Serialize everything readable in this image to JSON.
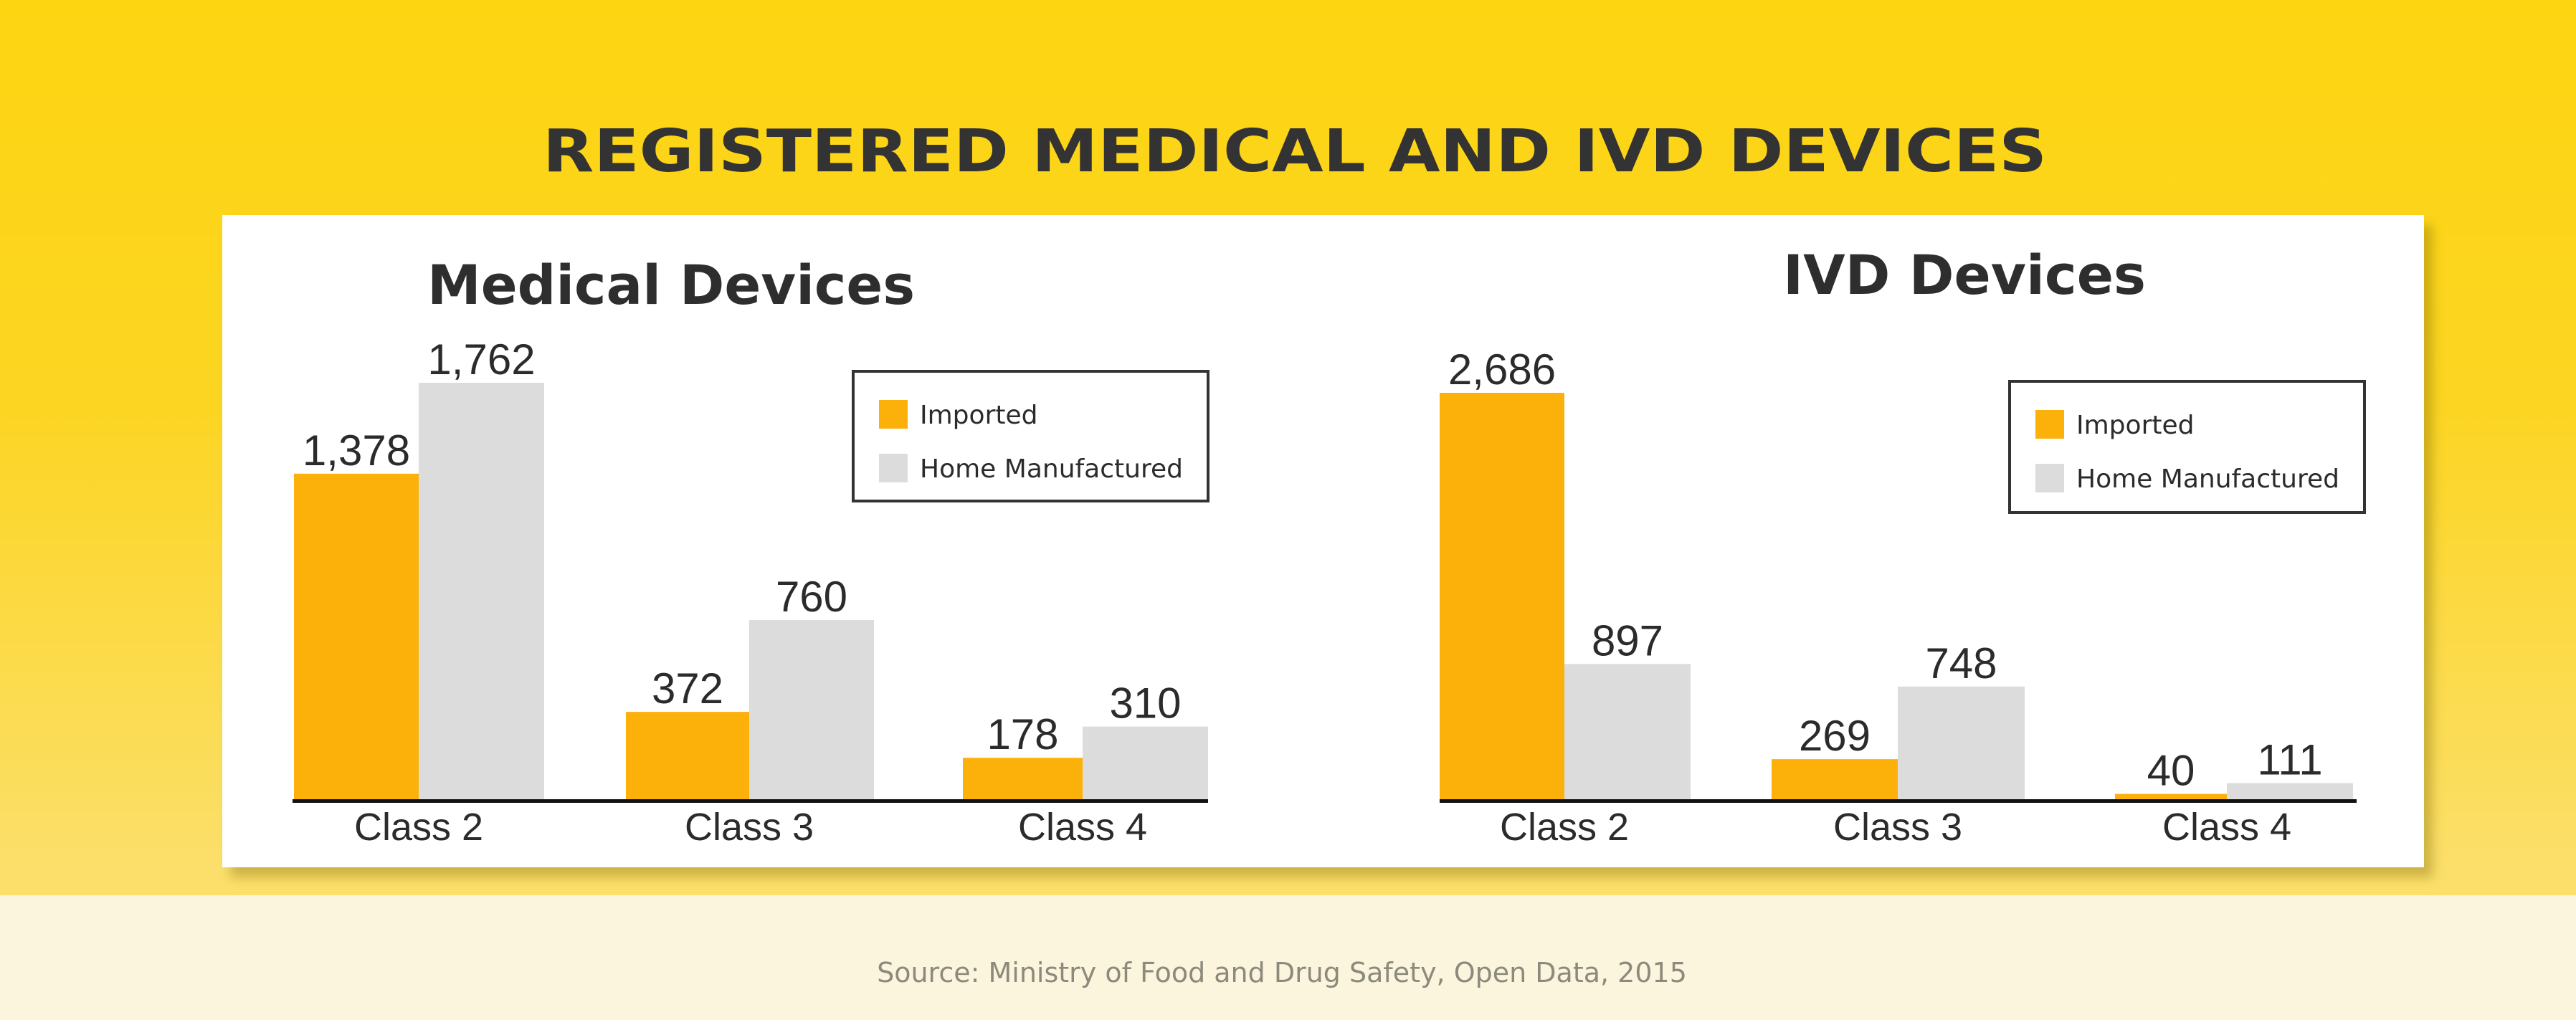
{
  "title": "REGISTERED MEDICAL AND IVD DEVICES",
  "source": "Source: Ministry of Food and Drug Safety, Open Data, 2015",
  "colors": {
    "imported": "#FBB10A",
    "home_manufactured": "#DCDCDC",
    "background": "#FDD511"
  },
  "chart_data": [
    {
      "type": "bar",
      "title": "Medical Devices",
      "categories": [
        "Class 2",
        "Class 3",
        "Class 4"
      ],
      "series": [
        {
          "name": "Imported",
          "values": [
            1378,
            372,
            178
          ],
          "labels": [
            "1,378",
            "372",
            "178"
          ]
        },
        {
          "name": "Home Manufactured",
          "values": [
            1762,
            760,
            310
          ],
          "labels": [
            "1,762",
            "760",
            "310"
          ]
        }
      ],
      "legend": "top-right",
      "grid": false
    },
    {
      "type": "bar",
      "title": "IVD Devices",
      "categories": [
        "Class 2",
        "Class 3",
        "Class 4"
      ],
      "series": [
        {
          "name": "Imported",
          "values": [
            2686,
            269,
            40
          ],
          "labels": [
            "2,686",
            "269",
            "40"
          ]
        },
        {
          "name": "Home Manufactured",
          "values": [
            897,
            748,
            111
          ],
          "labels": [
            "897",
            "748",
            "111"
          ]
        }
      ],
      "legend": "top-right",
      "grid": false
    }
  ]
}
